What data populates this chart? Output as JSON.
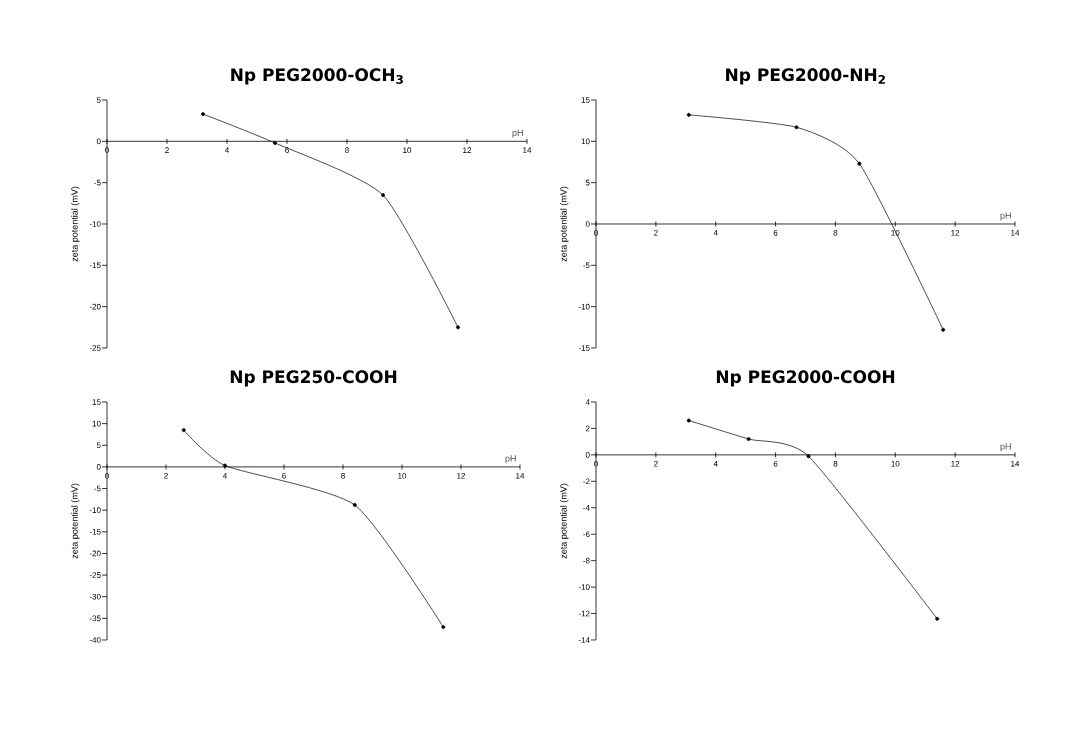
{
  "chart_data": [
    {
      "type": "line",
      "title": "Np PEG2000-OCH$_{3}$",
      "xlabel": "pH",
      "ylabel": "zeta potential (mV)",
      "color": "#000000",
      "marker": "circle",
      "x": [
        3.2,
        5.6,
        9.2,
        11.7
      ],
      "values": [
        3.3,
        -0.2,
        -6.5,
        -22.5
      ],
      "xlim": [
        0,
        14
      ],
      "xticks": [
        0,
        2,
        4,
        6,
        8,
        10,
        12,
        14
      ],
      "ylim": [
        -25,
        5
      ],
      "yticks": [
        -25,
        -20,
        -15,
        -10,
        -5,
        0,
        5
      ]
    },
    {
      "type": "line",
      "title": "Np PEG2000-NH$_{2}$",
      "xlabel": "pH",
      "ylabel": "zeta potential (mV)",
      "color": "#000000",
      "marker": "circle",
      "x": [
        3.1,
        6.7,
        8.8,
        11.6
      ],
      "values": [
        13.2,
        11.7,
        7.3,
        -12.8
      ],
      "xlim": [
        0,
        14
      ],
      "xticks": [
        0,
        2,
        4,
        6,
        8,
        10,
        12,
        14
      ],
      "ylim": [
        -15,
        15
      ],
      "yticks": [
        -15,
        -10,
        -5,
        0,
        5,
        10,
        15
      ]
    },
    {
      "type": "line",
      "title": "Np PEG250-COOH",
      "xlabel": "pH",
      "ylabel": "zeta potential (mV)",
      "color": "#000000",
      "marker": "circle",
      "x": [
        2.6,
        4.0,
        8.4,
        11.4
      ],
      "values": [
        8.5,
        0.3,
        -8.8,
        -37
      ],
      "xlim": [
        0,
        14
      ],
      "xticks": [
        0,
        2,
        4,
        6,
        8,
        10,
        12,
        14
      ],
      "ylim": [
        -40,
        15
      ],
      "yticks": [
        -40,
        -35,
        -30,
        -25,
        -20,
        -15,
        -10,
        -5,
        0,
        5,
        10,
        15
      ]
    },
    {
      "type": "line",
      "title": "Np PEG2000-COOH",
      "xlabel": "pH",
      "ylabel": "zeta potential (mV)",
      "color": "#000000",
      "marker": "circle",
      "x": [
        3.1,
        5.1,
        7.1,
        11.4
      ],
      "values": [
        2.6,
        1.2,
        -0.1,
        -12.4
      ],
      "xlim": [
        0,
        14
      ],
      "xticks": [
        0,
        2,
        4,
        6,
        8,
        10,
        12,
        14
      ],
      "ylim": [
        -14,
        4
      ],
      "yticks": [
        -14,
        -12,
        -10,
        -8,
        -6,
        -4,
        -2,
        0,
        2,
        4
      ]
    }
  ]
}
